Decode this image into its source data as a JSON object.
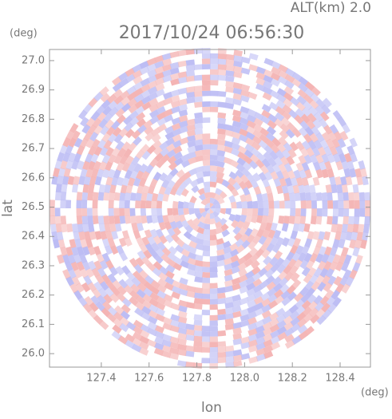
{
  "chart_data": {
    "type": "radar-ppi",
    "title": "2017/10/24 06:56:30",
    "altitude_label": "ALT(km) 2.0",
    "y_unit": "(deg)",
    "x_unit": "(deg)",
    "y_label": "lat",
    "x_label": "lon",
    "xlim": [
      127.183,
      128.527
    ],
    "ylim": [
      25.954,
      27.038
    ],
    "xticks": [
      127.4,
      127.6,
      127.8,
      {
        "value": 128.0,
        "label": "128.0"
      },
      128.2,
      128.4
    ],
    "yticks": [
      {
        "value": 26.0,
        "label": "26.0"
      },
      26.1,
      26.2,
      26.3,
      26.4,
      26.5,
      26.6,
      26.7,
      26.8,
      26.9,
      {
        "value": 27.0,
        "label": "27.0"
      }
    ],
    "colors": [
      "#f4b4b4",
      "#bcbcf4"
    ]
  }
}
